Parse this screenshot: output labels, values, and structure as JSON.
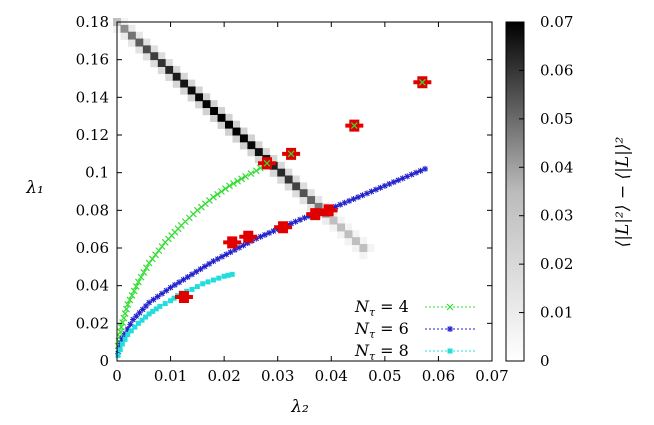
{
  "chart_data": {
    "type": "heatmap",
    "xlabel": "λ₂",
    "ylabel": "λ₁",
    "colorbar_label": "⟨|L|²⟩ − ⟨|L|⟩²",
    "xlim": [
      0,
      0.07
    ],
    "ylim": [
      0,
      0.18
    ],
    "x_ticks": [
      "0",
      "0.01",
      "0.02",
      "0.03",
      "0.04",
      "0.05",
      "0.06",
      "0.07"
    ],
    "y_ticks": [
      "0",
      "0.02",
      "0.04",
      "0.06",
      "0.08",
      "0.1",
      "0.12",
      "0.14",
      "0.16",
      "0.18"
    ],
    "colorbar_range": [
      0,
      0.07
    ],
    "colorbar_ticks": [
      "0",
      "0.01",
      "0.02",
      "0.03",
      "0.04",
      "0.05",
      "0.06",
      "0.07"
    ],
    "colors": {
      "nt4": "#33dd33",
      "nt6": "#2222cc",
      "nt8": "#22dddd",
      "marker": "#e00000"
    },
    "heatmap_ridge": {
      "x_range": [
        0.0,
        0.046
      ],
      "y_range": [
        0.18,
        0.06
      ],
      "peak_value": 0.07
    },
    "isolated_points": [
      {
        "x": 0.057,
        "y": 0.148
      },
      {
        "x": 0.0443,
        "y": 0.125
      },
      {
        "x": 0.0325,
        "y": 0.11
      },
      {
        "x": 0.028,
        "y": 0.105
      }
    ],
    "series": [
      {
        "name": "N_τ = 4",
        "legend_label": "N",
        "legend_sub": "τ",
        "legend_value": " = 4",
        "x": [
          0.0002,
          0.0008,
          0.002,
          0.004,
          0.006,
          0.009,
          0.012,
          0.015,
          0.018,
          0.021,
          0.024,
          0.026,
          0.0275
        ],
        "y": [
          0.008,
          0.018,
          0.03,
          0.042,
          0.052,
          0.063,
          0.072,
          0.08,
          0.087,
          0.093,
          0.098,
          0.101,
          0.104
        ]
      },
      {
        "name": "N_τ = 6",
        "legend_label": "N",
        "legend_sub": "τ",
        "legend_value": " = 6",
        "x": [
          0.0002,
          0.001,
          0.003,
          0.006,
          0.01,
          0.014,
          0.018,
          0.022,
          0.026,
          0.03,
          0.035,
          0.04,
          0.045,
          0.05,
          0.055,
          0.0575
        ],
        "y": [
          0.004,
          0.012,
          0.022,
          0.031,
          0.039,
          0.046,
          0.053,
          0.059,
          0.065,
          0.07,
          0.076,
          0.081,
          0.087,
          0.093,
          0.099,
          0.102
        ]
      },
      {
        "name": "N_τ = 8",
        "legend_label": "N",
        "legend_sub": "τ",
        "legend_value": " = 8",
        "x": [
          0.0002,
          0.001,
          0.002,
          0.004,
          0.006,
          0.008,
          0.01,
          0.012,
          0.014,
          0.016,
          0.018,
          0.02,
          0.0215
        ],
        "y": [
          0.003,
          0.009,
          0.014,
          0.02,
          0.025,
          0.029,
          0.032,
          0.036,
          0.038,
          0.041,
          0.043,
          0.045,
          0.046
        ]
      }
    ],
    "red_clusters": [
      {
        "x": 0.0125,
        "y": 0.034
      },
      {
        "x": 0.0215,
        "y": 0.063
      },
      {
        "x": 0.0245,
        "y": 0.066
      },
      {
        "x": 0.031,
        "y": 0.071
      },
      {
        "x": 0.037,
        "y": 0.078
      },
      {
        "x": 0.0395,
        "y": 0.08
      }
    ],
    "legend_position": "bottom-right",
    "grid": false
  }
}
